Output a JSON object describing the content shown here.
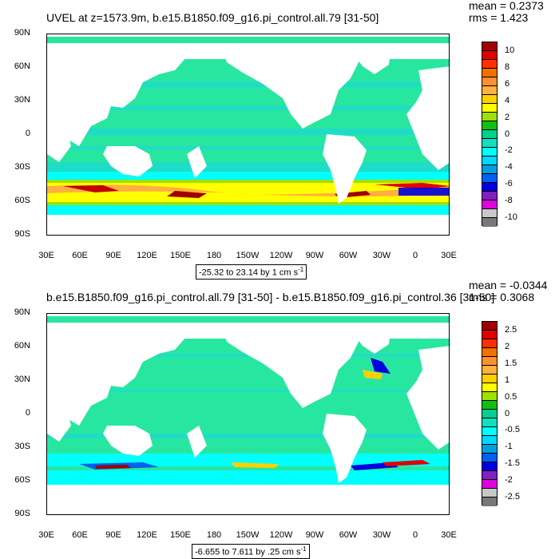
{
  "panels": [
    {
      "title": "UVEL at z=1573.9m, b.e15.B1850.f09_g16.pi_control.all.79 [31-50]",
      "mean": "mean = 0.2373",
      "rms": "rms = 1.423",
      "range": "-25.32 to 23.14 by 1 cm s",
      "range_sup": "-1",
      "colorbar": {
        "labels": [
          "10",
          "8",
          "6",
          "4",
          "2",
          "0",
          "-2",
          "-4",
          "-6",
          "-8",
          "-10"
        ],
        "colors": [
          "#a00000",
          "#e00000",
          "#ff3000",
          "#f07000",
          "#ff9030",
          "#ffb040",
          "#ffd000",
          "#ffff00",
          "#a0e000",
          "#10c010",
          "#00d090",
          "#10e0c0",
          "#00ffff",
          "#00d8ff",
          "#00a0e0",
          "#0060f0",
          "#0000e0",
          "#8020c0",
          "#e000e0",
          "#c8c8c8",
          "#787878"
        ]
      }
    },
    {
      "title": "b.e15.B1850.f09_g16.pi_control.all.79 [31-50] - b.e15.B1850.f09_g16.pi_control.36 [31-50]",
      "mean": "mean = -0.0344",
      "rms": "rms = 0.3068",
      "range": "-6.655 to 7.611 by .25 cm s",
      "range_sup": "-1",
      "colorbar": {
        "labels": [
          "2.5",
          "2",
          "1.5",
          "1",
          "0.5",
          "0",
          "-0.5",
          "-1",
          "-1.5",
          "-2",
          "-2.5"
        ],
        "colors": [
          "#a00000",
          "#e00000",
          "#ff3000",
          "#f07000",
          "#ff9030",
          "#ffb040",
          "#ffd000",
          "#ffff00",
          "#a0e000",
          "#10c010",
          "#00d090",
          "#10e0c0",
          "#00ffff",
          "#00d8ff",
          "#00a0e0",
          "#0060f0",
          "#0000e0",
          "#8020c0",
          "#e000e0",
          "#c8c8c8",
          "#787878"
        ]
      }
    }
  ],
  "axes": {
    "lat_labels": [
      "90N",
      "60N",
      "30N",
      "0",
      "30S",
      "60S",
      "90S"
    ],
    "lon_labels": [
      "30E",
      "60E",
      "90E",
      "120E",
      "150E",
      "180",
      "150W",
      "120W",
      "90W",
      "60W",
      "30W",
      "0",
      "30E"
    ]
  },
  "legend": {
    "field": "UVEL",
    "units": "cm s-1"
  },
  "fill_colors": {
    "ocean_main": "#27e7a0",
    "ocean_alt": "#1fdcc6",
    "cyan": "#00ffff",
    "yellow": "#ffff00",
    "orange": "#ff9030",
    "red": "#c00000",
    "blue": "#0060f0",
    "green": "#10c010",
    "land": "#ffffff"
  }
}
